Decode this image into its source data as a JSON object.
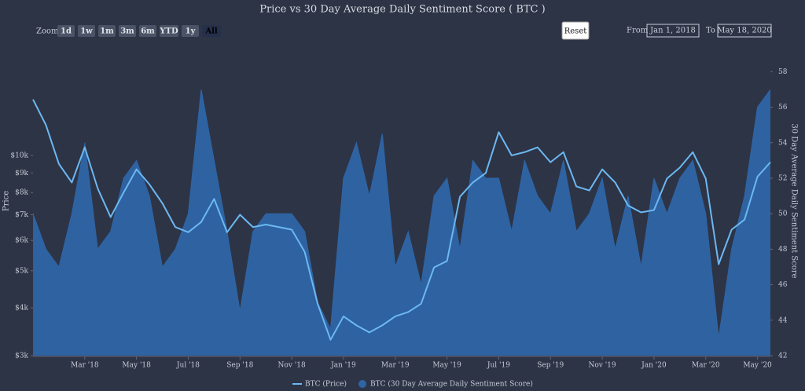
{
  "chart_data": {
    "type": "line-area",
    "title": "Price vs 30 Day Average Daily Sentiment Score ( BTC )",
    "y_label": "Price",
    "y2_label": "30 Day Average Daily Sentiment Score",
    "categories": [
      null,
      null,
      null,
      null,
      "Mar '18",
      null,
      null,
      null,
      "May '18",
      null,
      null,
      null,
      "Jul '18",
      null,
      null,
      null,
      "Sep '18",
      null,
      null,
      null,
      "Nov '18",
      null,
      null,
      null,
      "Jan '19",
      null,
      null,
      null,
      "Mar '19",
      null,
      null,
      null,
      "May '19",
      null,
      null,
      null,
      "Jul '19",
      null,
      null,
      null,
      "Sep '19",
      null,
      null,
      null,
      "Nov '19",
      null,
      null,
      null,
      "Jan '20",
      null,
      null,
      null,
      "Mar '20",
      null,
      null,
      null,
      "May '20",
      null
    ],
    "series": [
      {
        "name": "BTC (Price)",
        "color": "#6cb8f2",
        "kind": "line",
        "axis": "y",
        "values": [
          14000,
          12000,
          9500,
          8500,
          10500,
          8200,
          6900,
          8000,
          9200,
          8400,
          7500,
          6500,
          6300,
          6700,
          7700,
          6300,
          7000,
          6500,
          6600,
          6500,
          6400,
          5600,
          4100,
          3300,
          3800,
          3600,
          3450,
          3600,
          3800,
          3900,
          4100,
          5100,
          5300,
          7800,
          8500,
          9000,
          11500,
          10000,
          10200,
          10500,
          9600,
          10200,
          8300,
          8100,
          9200,
          8500,
          7400,
          7100,
          7200,
          8700,
          9300,
          10200,
          8700,
          5200,
          6400,
          6800,
          8800,
          9600
        ]
      },
      {
        "name": "BTC (30 Day Average Daily Sentiment Score)",
        "color": "#2e65a6",
        "kind": "area",
        "axis": "y2",
        "values": [
          50,
          48,
          47,
          50,
          54,
          48,
          49,
          52,
          53,
          51,
          47,
          48,
          50,
          57,
          53,
          49,
          44.5,
          49,
          50,
          50,
          50,
          49,
          45,
          43.5,
          52,
          54,
          51,
          54.5,
          47,
          49,
          46,
          51,
          52,
          48,
          53,
          52,
          52,
          49,
          53,
          51,
          50,
          53,
          49,
          50,
          52,
          48,
          51,
          47,
          52,
          50,
          52,
          53,
          50,
          43,
          48,
          51,
          56,
          57
        ]
      }
    ],
    "yscale": "log",
    "ylim": [
      3000,
      19000
    ],
    "yticks": [
      {
        "value": 3000,
        "label": "$3k"
      },
      {
        "value": 4000,
        "label": "$4k"
      },
      {
        "value": 5000,
        "label": "$5k"
      },
      {
        "value": 6000,
        "label": "$6k"
      },
      {
        "value": 7000,
        "label": "$7k"
      },
      {
        "value": 8000,
        "label": "$8k"
      },
      {
        "value": 9000,
        "label": "$9k"
      },
      {
        "value": 10000,
        "label": "$10k"
      }
    ],
    "y2lim": [
      42,
      59.3
    ],
    "y2ticks": [
      42,
      44,
      46,
      48,
      50,
      52,
      54,
      56,
      58
    ],
    "legend": "bottom"
  },
  "controls": {
    "zoom_label": "Zoom",
    "zoom_buttons": [
      "1d",
      "1w",
      "1m",
      "3m",
      "6m",
      "YTD",
      "1y",
      "All"
    ],
    "reset": "Reset",
    "from_label": "From",
    "from": "Jan 1, 2018",
    "to_label": "To",
    "to": "May 18, 2020"
  }
}
